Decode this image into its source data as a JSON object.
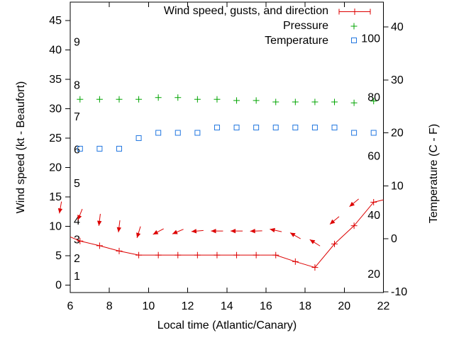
{
  "colors": {
    "wind": "#dd0000",
    "pressure": "#00a400",
    "temperature": "#2277e0",
    "axis": "#000000",
    "background": "#ffffff"
  },
  "legend": {
    "items": [
      {
        "label": "Wind speed, gusts, and direction",
        "series": "wind"
      },
      {
        "label": "Pressure",
        "series": "pressure"
      },
      {
        "label": "Temperature",
        "series": "temperature"
      }
    ]
  },
  "chart_data": {
    "type": "line",
    "title": "",
    "x_axis": {
      "label": "Local time (Atlantic/Canary)",
      "min": 6,
      "max": 22,
      "ticks": [
        6,
        8,
        10,
        12,
        14,
        16,
        18,
        20,
        22
      ]
    },
    "y_axis_left": {
      "label": "Wind speed (kt - Beaufort)",
      "ticks": [
        0,
        5,
        10,
        15,
        20,
        25,
        30,
        35,
        40,
        45
      ],
      "range": [
        -1.3,
        48.1
      ],
      "beaufort_scale_labels": [
        {
          "beaufort": "1",
          "at_kt": 1.5
        },
        {
          "beaufort": "2",
          "at_kt": 4.5
        },
        {
          "beaufort": "3",
          "at_kt": 7.7
        },
        {
          "beaufort": "4",
          "at_kt": 10.9
        },
        {
          "beaufort": "5",
          "at_kt": 17.3
        },
        {
          "beaufort": "6",
          "at_kt": 23.0
        },
        {
          "beaufort": "7",
          "at_kt": 28.6
        },
        {
          "beaufort": "8",
          "at_kt": 34.0
        },
        {
          "beaufort": "9",
          "at_kt": 41.3
        }
      ]
    },
    "y_axis_right": {
      "label": "Temperature (C - F)",
      "ticks_celsius": [
        -10,
        0,
        10,
        20,
        30,
        40
      ],
      "range_celsius": [
        -10.6,
        44.8
      ],
      "fahrenheit_inner_labels": [
        {
          "f": "20",
          "c_equiv": -6.67
        },
        {
          "f": "40",
          "c_equiv": 4.44
        },
        {
          "f": "60",
          "c_equiv": 15.56
        },
        {
          "f": "80",
          "c_equiv": 26.67
        },
        {
          "f": "100",
          "c_equiv": 37.78
        }
      ]
    },
    "series": [
      {
        "name": "wind_speed",
        "axis": "left",
        "marker": "plus",
        "line": true,
        "unit": "kt",
        "x": [
          6.0,
          6.5,
          7.5,
          8.5,
          9.5,
          10.5,
          11.5,
          12.5,
          13.5,
          14.5,
          15.5,
          16.5,
          17.5,
          18.5,
          19.5,
          20.5,
          21.5,
          22.0
        ],
        "y": [
          8.2,
          7.5,
          6.7,
          5.8,
          5.1,
          5.1,
          5.1,
          5.1,
          5.1,
          5.1,
          5.1,
          5.1,
          4.0,
          3.0,
          7.0,
          10.1,
          14.1,
          14.5
        ],
        "unmarked_edge_indices": [
          0,
          17
        ]
      },
      {
        "name": "gusts_and_direction",
        "axis": "left",
        "marker": "vector-arrow",
        "unit": "kt",
        "x": [
          5.5,
          6.5,
          7.5,
          8.5,
          9.5,
          10.5,
          11.5,
          12.5,
          13.5,
          14.5,
          15.5,
          16.5,
          17.5,
          18.5,
          19.5,
          20.5
        ],
        "gust_kt": [
          13.2,
          12.0,
          11.1,
          10.0,
          9.0,
          9.1,
          9.1,
          9.2,
          9.2,
          9.2,
          9.2,
          9.3,
          8.4,
          7.2,
          11.0,
          14.0
        ],
        "angle_deg_screen_cw_from_east": [
          100,
          112,
          97,
          97,
          107,
          152,
          157,
          175,
          180,
          180,
          178,
          192,
          210,
          212,
          140,
          140
        ]
      },
      {
        "name": "pressure",
        "axis": "left",
        "marker": "plus",
        "line": false,
        "x": [
          6.5,
          7.5,
          8.5,
          9.5,
          10.5,
          11.5,
          12.5,
          13.5,
          14.5,
          15.5,
          16.5,
          17.5,
          18.5,
          19.5,
          20.5,
          21.5
        ],
        "y_left_axis_units": [
          31.6,
          31.6,
          31.6,
          31.6,
          31.9,
          31.9,
          31.6,
          31.6,
          31.4,
          31.4,
          31.15,
          31.15,
          31.15,
          31.15,
          31.0,
          31.3
        ]
      },
      {
        "name": "temperature",
        "axis": "right",
        "marker": "open-square",
        "line": false,
        "unit": "C",
        "x": [
          6.5,
          7.5,
          8.5,
          9.5,
          10.5,
          11.5,
          12.5,
          13.5,
          14.5,
          15.5,
          16.5,
          17.5,
          18.5,
          19.5,
          20.5,
          21.5
        ],
        "y_celsius": [
          17,
          17,
          17,
          19,
          20,
          20,
          20,
          21,
          21,
          21,
          21,
          21,
          21,
          21,
          20,
          20
        ]
      }
    ]
  }
}
